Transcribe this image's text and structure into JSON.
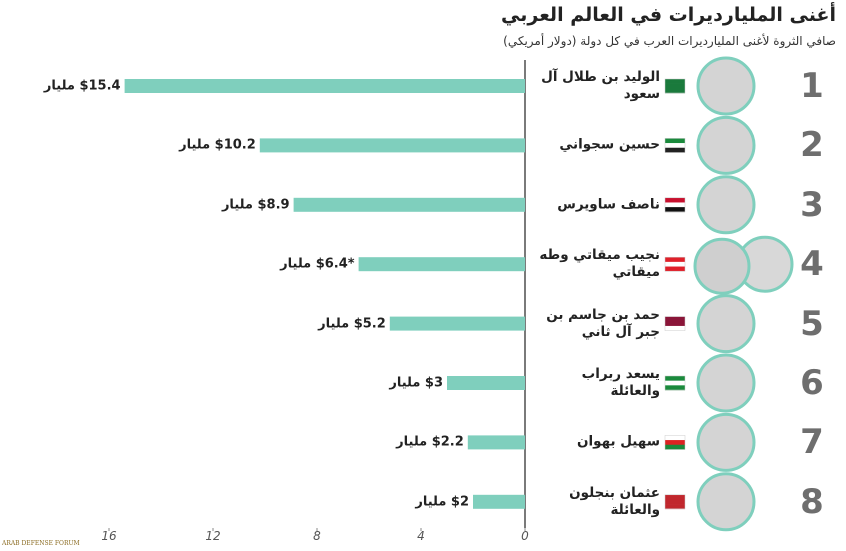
{
  "chart_data": {
    "type": "bar",
    "orientation": "horizontal",
    "title": "أغنى المليارديرات في العالم العربي",
    "subtitle": "صافي الثروة لأغنى المليارديرات العرب في كل دولة (دولار أمريكي)",
    "ranks": [
      "1",
      "2",
      "3",
      "4",
      "5",
      "6",
      "7",
      "8"
    ],
    "categories": [
      "الوليد بن طلال آل سعود",
      "حسين سجواني",
      "ناصف ساويرس",
      "نجيب ميقاتي وطه ميقاتي",
      "حمد بن جاسم بن جبر آل ثاني",
      "يسعد ربراب والعائلة",
      "سهيل بهوان",
      "عثمان بنجلون والعائلة"
    ],
    "values": [
      15.4,
      10.2,
      8.9,
      6.4,
      5.2,
      3,
      2.2,
      2
    ],
    "value_labels": [
      "$15.4 مليار",
      "$10.2 مليار",
      "$8.9 مليار",
      "*$6.4 مليار",
      "$5.2 مليار",
      "$3 مليار",
      "$2.2 مليار",
      "$2 مليار"
    ],
    "color": "#7fcfbd",
    "xlim": [
      0,
      16
    ],
    "xticks": [
      0,
      4,
      8,
      12,
      16
    ],
    "watermark": "ARAB DEFENSE FORUM"
  }
}
